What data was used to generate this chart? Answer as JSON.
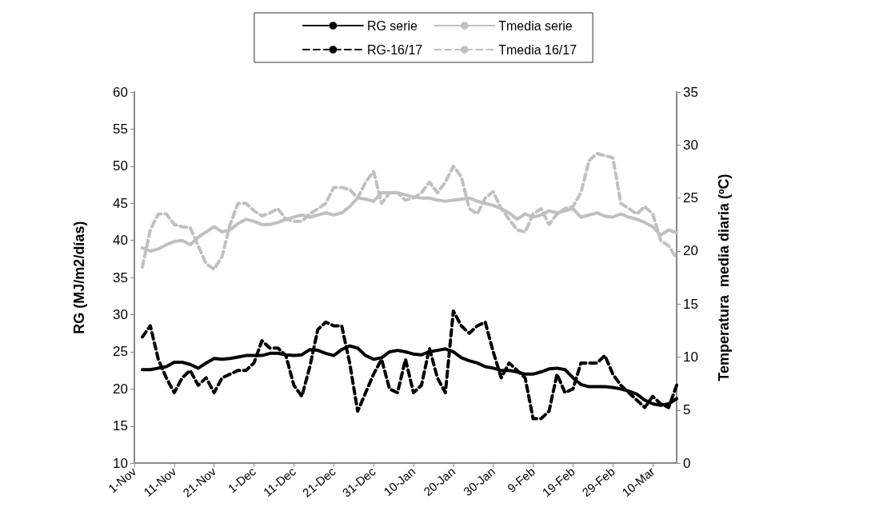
{
  "chart_data": {
    "type": "line",
    "ylabel": "RG (MJ/m2/días)",
    "y2label": "Temperatura  media diaria (ºC)",
    "categories": [
      "1-Nov",
      null,
      null,
      null,
      null,
      "11-Nov",
      null,
      null,
      null,
      null,
      "21-Nov",
      null,
      null,
      null,
      null,
      "1-Dec",
      null,
      null,
      null,
      null,
      "11-Dec",
      null,
      null,
      null,
      null,
      "21-Dec",
      null,
      null,
      null,
      null,
      "31-Dec",
      null,
      null,
      null,
      null,
      "10-Jan",
      null,
      null,
      null,
      null,
      "20-Jan",
      null,
      null,
      null,
      null,
      "30-Jan",
      null,
      null,
      null,
      null,
      "9-Feb",
      null,
      null,
      null,
      null,
      "19-Feb",
      null,
      null,
      null,
      null,
      "29-Feb",
      null,
      null,
      null,
      null,
      "10-Mar",
      null,
      null,
      null
    ],
    "ylim": [
      10,
      60
    ],
    "yticks": [
      10,
      15,
      20,
      25,
      30,
      35,
      40,
      45,
      50,
      55,
      60
    ],
    "y2lim": [
      0,
      35
    ],
    "y2ticks": [
      0,
      5,
      10,
      15,
      20,
      25,
      30,
      35
    ],
    "grid": false,
    "legend": "top",
    "marker": "none",
    "series": [
      {
        "name": "RG serie",
        "color": "#000000",
        "line_style": "solid",
        "values": [
          null,
          22.6,
          22.6,
          22.8,
          23.0,
          23.6,
          23.6,
          23.3,
          22.8,
          23.5,
          24.1,
          24.0,
          24.1,
          24.3,
          24.5,
          24.5,
          24.5,
          24.8,
          24.8,
          24.6,
          24.5,
          24.6,
          25.3,
          25.2,
          24.8,
          24.5,
          25.3,
          25.8,
          25.5,
          24.5,
          24.0,
          24.2,
          25.0,
          25.2,
          25.0,
          24.7,
          24.6,
          25.0,
          25.2,
          25.4,
          25.0,
          24.2,
          23.8,
          23.5,
          23.0,
          22.8,
          22.5,
          22.5,
          22.3,
          22.0,
          22.0,
          22.3,
          22.7,
          22.8,
          22.6,
          21.5,
          20.6,
          20.3,
          20.3,
          20.3,
          20.2,
          20.0,
          19.7,
          19.3,
          18.5,
          18.0,
          17.8,
          18.0,
          18.7
        ]
      },
      {
        "name": "RG-16/17",
        "color": "#000000",
        "line_style": "dashed",
        "values": [
          null,
          27.0,
          28.5,
          24.0,
          21.5,
          19.5,
          21.5,
          22.5,
          20.5,
          21.5,
          19.5,
          21.5,
          22.0,
          22.5,
          22.5,
          23.5,
          26.5,
          25.5,
          25.5,
          24.5,
          20.5,
          19.0,
          23.0,
          28.0,
          29.0,
          28.5,
          28.5,
          23.5,
          17.0,
          19.5,
          22.0,
          24.0,
          20.0,
          19.5,
          24.0,
          19.5,
          20.5,
          25.5,
          21.5,
          19.5,
          30.5,
          28.5,
          27.5,
          28.5,
          29.0,
          25.0,
          21.5,
          23.5,
          22.5,
          21.5,
          16.0,
          16.0,
          17.0,
          22.0,
          19.5,
          20.0,
          23.5,
          23.5,
          23.5,
          24.5,
          22.0,
          20.5,
          19.5,
          18.5,
          17.5,
          19.0,
          18.0,
          17.5,
          20.5
        ]
      },
      {
        "name": "Tmedia serie",
        "color": "#c0c0c0",
        "line_style": "solid",
        "axis": "y2",
        "values": [
          null,
          20.3,
          20.0,
          20.2,
          20.6,
          20.9,
          21.0,
          20.6,
          21.3,
          21.8,
          22.3,
          21.8,
          22.0,
          22.6,
          23.0,
          22.8,
          22.5,
          22.5,
          22.7,
          23.0,
          23.2,
          23.4,
          23.2,
          23.4,
          23.6,
          23.4,
          23.6,
          24.2,
          25.0,
          24.9,
          24.7,
          25.5,
          25.5,
          25.5,
          25.3,
          25.1,
          25.0,
          25.0,
          24.8,
          24.7,
          24.8,
          24.9,
          25.0,
          24.7,
          24.5,
          24.3,
          24.0,
          23.6,
          23.0,
          23.5,
          23.2,
          23.4,
          23.8,
          23.6,
          23.8,
          24.0,
          23.2,
          23.4,
          23.6,
          23.3,
          23.2,
          23.5,
          23.2,
          23.0,
          22.7,
          22.3,
          21.5,
          22.0,
          21.7
        ]
      },
      {
        "name": "Tmedia 16/17",
        "color": "#c0c0c0",
        "line_style": "dashed",
        "axis": "y2",
        "values": [
          null,
          18.5,
          22.0,
          23.5,
          23.5,
          22.5,
          22.3,
          22.2,
          20.5,
          18.8,
          18.3,
          19.5,
          22.5,
          24.5,
          24.5,
          23.8,
          23.3,
          23.6,
          24.0,
          23.0,
          22.8,
          22.8,
          23.5,
          24.0,
          24.5,
          26.0,
          26.0,
          25.8,
          25.0,
          26.5,
          27.5,
          24.5,
          25.5,
          25.5,
          24.8,
          25.0,
          25.5,
          26.5,
          25.5,
          26.5,
          28.0,
          27.0,
          24.0,
          23.5,
          25.0,
          25.6,
          24.0,
          23.0,
          22.0,
          21.8,
          23.5,
          24.0,
          22.5,
          23.5,
          24.0,
          24.2,
          25.5,
          28.5,
          29.2,
          29.0,
          28.8,
          24.5,
          24.0,
          23.5,
          24.2,
          23.5,
          21.0,
          20.5,
          19.3
        ]
      }
    ]
  }
}
